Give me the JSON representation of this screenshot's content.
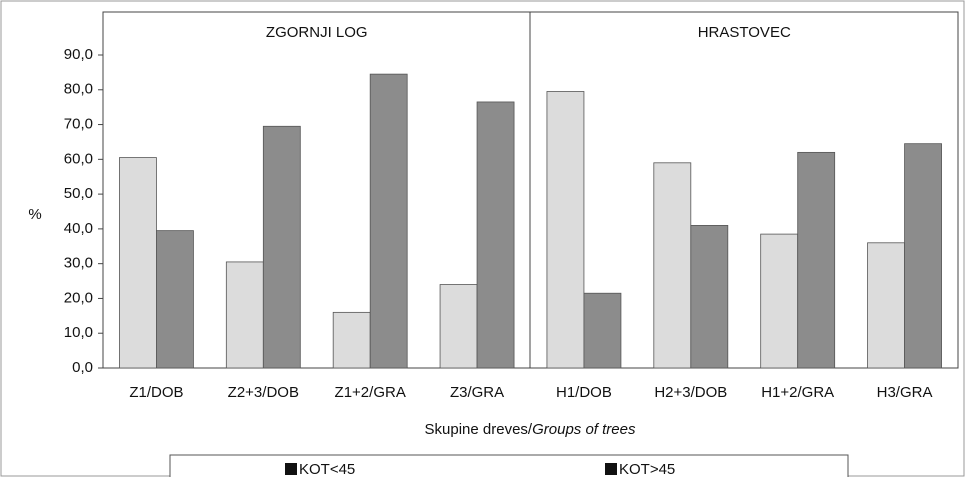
{
  "chart_data": {
    "type": "bar",
    "group_labels": [
      "ZGORNJI LOG",
      "HRASTOVEC"
    ],
    "categories": [
      "Z1/DOB",
      "Z2+3/DOB",
      "Z1+2/GRA",
      "Z3/GRA",
      "H1/DOB",
      "H2+3/DOB",
      "H1+2/GRA",
      "H3/GRA"
    ],
    "series": [
      {
        "name": "KOT<45",
        "color": "#dcdcdc",
        "values": [
          60.5,
          30.5,
          16,
          24,
          79.5,
          59,
          38.5,
          36
        ]
      },
      {
        "name": "KOT>45",
        "color": "#8c8c8c",
        "values": [
          39.5,
          69.5,
          84.5,
          76.5,
          21.5,
          41,
          62,
          64.5
        ]
      }
    ],
    "ylabel": "%",
    "xlabel": "Skupine dreves/",
    "xlabel_italic": "Groups of trees",
    "ylim": [
      0,
      90
    ],
    "yticks": [
      {
        "value": 0,
        "label": "0,0"
      },
      {
        "value": 10,
        "label": "10,0"
      },
      {
        "value": 20,
        "label": "20,0"
      },
      {
        "value": 30,
        "label": "30,0"
      },
      {
        "value": 40,
        "label": "40,0"
      },
      {
        "value": 50,
        "label": "50,0"
      },
      {
        "value": 60,
        "label": "60,0"
      },
      {
        "value": 70,
        "label": "70,0"
      },
      {
        "value": 80,
        "label": "80,0"
      },
      {
        "value": 90,
        "label": "90,0"
      }
    ],
    "grid": false,
    "legend": "bottom"
  }
}
